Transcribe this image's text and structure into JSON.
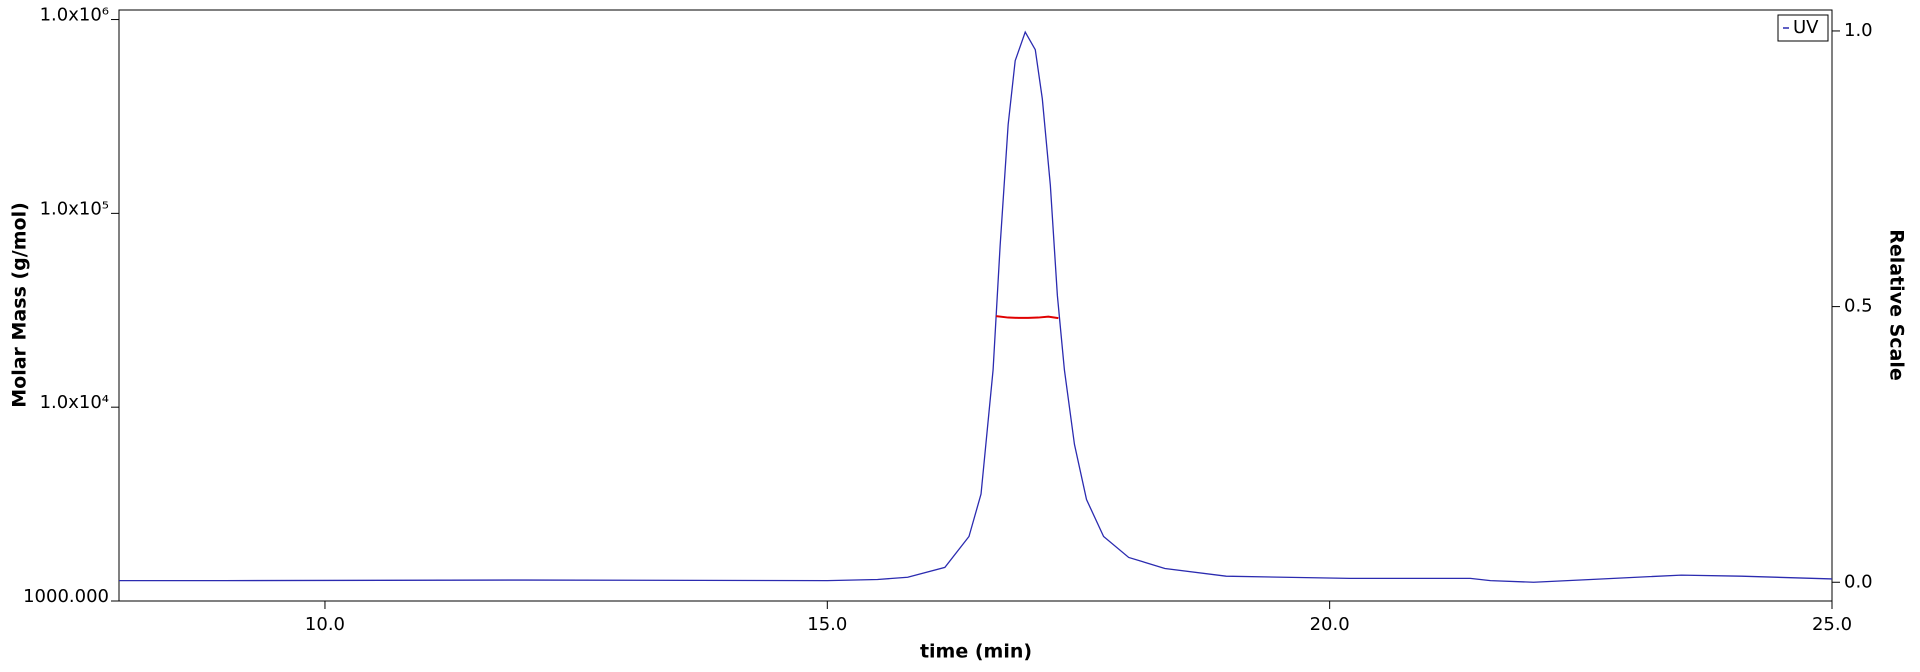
{
  "chart_data": {
    "type": "line",
    "x_label": "time (min)",
    "y_label": "Molar Mass (g/mol)",
    "y2_label": "Relative Scale",
    "xlim": [
      7.95,
      25.0
    ],
    "xticks": [
      {
        "value": 10,
        "label": "10.0"
      },
      {
        "value": 15,
        "label": "15.0"
      },
      {
        "value": 20,
        "label": "20.0"
      },
      {
        "value": 25,
        "label": "25.0"
      }
    ],
    "ylim": [
      1000,
      1120000
    ],
    "ylog": true,
    "yticks": [
      {
        "value": 1000,
        "label": "1000.000"
      },
      {
        "value": 10000,
        "label": "1.0x10⁴"
      },
      {
        "value": 100000,
        "label": "1.0x10⁵"
      },
      {
        "value": 1000000,
        "label": "1.0x10⁶"
      }
    ],
    "y2lim": [
      -0.034,
      1.038
    ],
    "y2ticks": [
      {
        "value": 0,
        "label": "0.0"
      },
      {
        "value": 0.5,
        "label": "0.5"
      },
      {
        "value": 1,
        "label": "1.0"
      }
    ],
    "legend": "top-right",
    "series": [
      {
        "name": "UV",
        "color": "#2b2bb0",
        "axis": "y2",
        "x": [
          7.95,
          9.0,
          12.0,
          15.0,
          15.5,
          15.8,
          16.17,
          16.41,
          16.53,
          16.65,
          16.72,
          16.8,
          16.87,
          16.97,
          17.07,
          17.14,
          17.22,
          17.29,
          17.36,
          17.46,
          17.58,
          17.75,
          18.0,
          18.36,
          18.97,
          20.2,
          21.4,
          21.6,
          22.03,
          22.6,
          23.5,
          24.1,
          25.0
        ],
        "values": [
          0.003,
          0.003,
          0.004,
          0.003,
          0.005,
          0.009,
          0.027,
          0.083,
          0.16,
          0.385,
          0.61,
          0.83,
          0.946,
          0.998,
          0.966,
          0.877,
          0.72,
          0.52,
          0.385,
          0.25,
          0.15,
          0.083,
          0.045,
          0.025,
          0.011,
          0.007,
          0.007,
          0.003,
          0.0,
          0.005,
          0.013,
          0.011,
          0.006
        ]
      },
      {
        "color": "#e00000",
        "axis": "y",
        "x": [
          16.68,
          16.8,
          16.9,
          17.0,
          17.1,
          17.2,
          17.3
        ],
        "values": [
          29500,
          29000,
          28900,
          28900,
          29000,
          29300,
          28800
        ]
      }
    ]
  }
}
